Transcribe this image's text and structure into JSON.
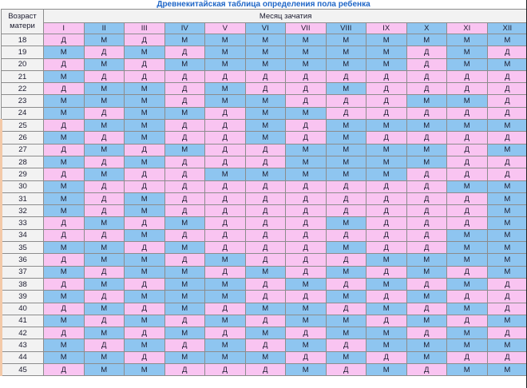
{
  "title": "Древнекитайская таблица определения пола ребенка",
  "header": {
    "age_label_line1": "Возраст",
    "age_label_line2": "матери",
    "months_label": "Месяц зачатия",
    "months": [
      "I",
      "II",
      "III",
      "IV",
      "V",
      "VI",
      "VII",
      "VIII",
      "IX",
      "X",
      "XI",
      "XII"
    ]
  },
  "legend_values": {
    "girl": "Д",
    "boy": "М"
  },
  "colors": {
    "girl": "#f9c4f1",
    "boy": "#8ec5f0",
    "header_bg": "#f2f2f2",
    "title": "#1f66c7"
  },
  "rows": [
    {
      "age": "18",
      "cells": [
        "Д",
        "М",
        "Д",
        "М",
        "М",
        "М",
        "М",
        "М",
        "М",
        "М",
        "М",
        "М"
      ]
    },
    {
      "age": "19",
      "cells": [
        "М",
        "Д",
        "М",
        "Д",
        "М",
        "М",
        "М",
        "М",
        "М",
        "Д",
        "М",
        "Д"
      ]
    },
    {
      "age": "20",
      "cells": [
        "Д",
        "М",
        "Д",
        "М",
        "М",
        "М",
        "М",
        "М",
        "М",
        "Д",
        "М",
        "М"
      ]
    },
    {
      "age": "21",
      "cells": [
        "М",
        "Д",
        "Д",
        "Д",
        "Д",
        "Д",
        "Д",
        "Д",
        "Д",
        "Д",
        "Д",
        "Д"
      ]
    },
    {
      "age": "22",
      "cells": [
        "Д",
        "М",
        "М",
        "Д",
        "М",
        "Д",
        "Д",
        "М",
        "Д",
        "Д",
        "Д",
        "Д"
      ]
    },
    {
      "age": "23",
      "cells": [
        "М",
        "М",
        "М",
        "Д",
        "М",
        "М",
        "Д",
        "Д",
        "Д",
        "М",
        "М",
        "Д"
      ]
    },
    {
      "age": "24",
      "cells": [
        "М",
        "Д",
        "М",
        "М",
        "Д",
        "М",
        "М",
        "Д",
        "Д",
        "Д",
        "Д",
        "Д"
      ]
    },
    {
      "age": "25",
      "cells": [
        "Д",
        "М",
        "М",
        "Д",
        "Д",
        "М",
        "Д",
        "М",
        "М",
        "М",
        "М",
        "М"
      ]
    },
    {
      "age": "26",
      "cells": [
        "М",
        "Д",
        "М",
        "Д",
        "Д",
        "М",
        "Д",
        "М",
        "Д",
        "Д",
        "Д",
        "Д"
      ]
    },
    {
      "age": "27",
      "cells": [
        "Д",
        "М",
        "Д",
        "М",
        "Д",
        "Д",
        "М",
        "М",
        "М",
        "М",
        "Д",
        "М"
      ]
    },
    {
      "age": "28",
      "cells": [
        "М",
        "Д",
        "М",
        "Д",
        "Д",
        "Д",
        "М",
        "М",
        "М",
        "М",
        "Д",
        "Д"
      ]
    },
    {
      "age": "29",
      "cells": [
        "Д",
        "М",
        "Д",
        "Д",
        "М",
        "М",
        "М",
        "М",
        "М",
        "Д",
        "Д",
        "Д"
      ]
    },
    {
      "age": "30",
      "cells": [
        "М",
        "Д",
        "Д",
        "Д",
        "Д",
        "Д",
        "Д",
        "Д",
        "Д",
        "Д",
        "М",
        "М"
      ]
    },
    {
      "age": "31",
      "cells": [
        "М",
        "Д",
        "М",
        "Д",
        "Д",
        "Д",
        "Д",
        "Д",
        "Д",
        "Д",
        "Д",
        "М"
      ]
    },
    {
      "age": "32",
      "cells": [
        "М",
        "Д",
        "М",
        "Д",
        "Д",
        "Д",
        "Д",
        "Д",
        "Д",
        "Д",
        "Д",
        "М"
      ]
    },
    {
      "age": "33",
      "cells": [
        "Д",
        "М",
        "Д",
        "М",
        "Д",
        "Д",
        "Д",
        "М",
        "Д",
        "Д",
        "Д",
        "М"
      ]
    },
    {
      "age": "34",
      "cells": [
        "Д",
        "Д",
        "М",
        "Д",
        "Д",
        "Д",
        "Д",
        "Д",
        "Д",
        "Д",
        "М",
        "М"
      ]
    },
    {
      "age": "35",
      "cells": [
        "М",
        "М",
        "Д",
        "М",
        "Д",
        "Д",
        "Д",
        "М",
        "Д",
        "Д",
        "М",
        "М"
      ]
    },
    {
      "age": "36",
      "cells": [
        "Д",
        "М",
        "М",
        "Д",
        "М",
        "Д",
        "Д",
        "Д",
        "М",
        "М",
        "М",
        "М"
      ]
    },
    {
      "age": "37",
      "cells": [
        "М",
        "Д",
        "М",
        "М",
        "Д",
        "М",
        "Д",
        "М",
        "Д",
        "М",
        "Д",
        "М"
      ]
    },
    {
      "age": "38",
      "cells": [
        "Д",
        "М",
        "Д",
        "М",
        "М",
        "Д",
        "М",
        "Д",
        "М",
        "Д",
        "М",
        "Д"
      ]
    },
    {
      "age": "39",
      "cells": [
        "М",
        "Д",
        "М",
        "М",
        "М",
        "Д",
        "Д",
        "М",
        "Д",
        "М",
        "Д",
        "Д"
      ]
    },
    {
      "age": "40",
      "cells": [
        "Д",
        "М",
        "Д",
        "М",
        "Д",
        "М",
        "М",
        "Д",
        "М",
        "Д",
        "М",
        "Д"
      ]
    },
    {
      "age": "41",
      "cells": [
        "М",
        "Д",
        "М",
        "Д",
        "М",
        "Д",
        "М",
        "М",
        "Д",
        "М",
        "Д",
        "М"
      ]
    },
    {
      "age": "42",
      "cells": [
        "Д",
        "М",
        "Д",
        "М",
        "Д",
        "М",
        "Д",
        "М",
        "М",
        "Д",
        "М",
        "Д"
      ]
    },
    {
      "age": "43",
      "cells": [
        "М",
        "Д",
        "М",
        "Д",
        "М",
        "Д",
        "М",
        "Д",
        "М",
        "М",
        "М",
        "М"
      ]
    },
    {
      "age": "44",
      "cells": [
        "М",
        "М",
        "Д",
        "М",
        "М",
        "М",
        "Д",
        "М",
        "Д",
        "М",
        "Д",
        "Д"
      ]
    },
    {
      "age": "45",
      "cells": [
        "Д",
        "М",
        "М",
        "Д",
        "Д",
        "Д",
        "М",
        "Д",
        "М",
        "Д",
        "М",
        "М"
      ]
    }
  ]
}
